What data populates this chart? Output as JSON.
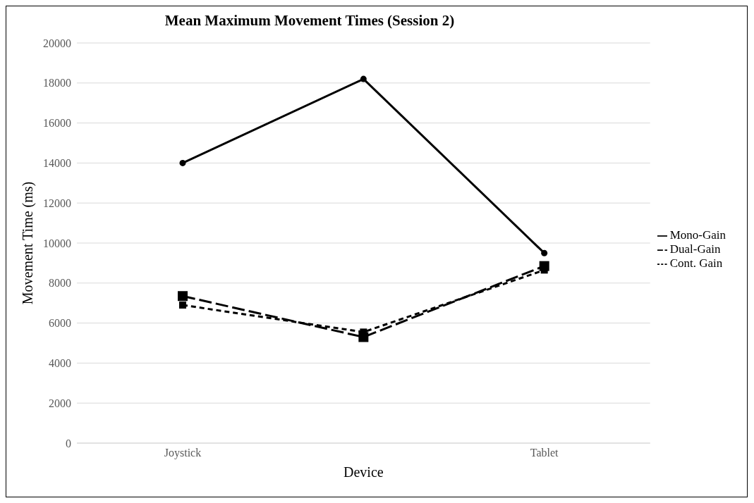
{
  "chart_data": {
    "type": "line",
    "title": "Mean Maximum Movement Times (Session 2)",
    "xlabel": "Device",
    "ylabel": "Movement Time (ms)",
    "categories": [
      "Joystick",
      null,
      "Tablet"
    ],
    "series": [
      {
        "name": "Mono-Gain",
        "color": "#000000",
        "values": [
          14000,
          18200,
          9500
        ],
        "marker": "circle",
        "line_style": "solid"
      },
      {
        "name": "Dual-Gain",
        "color": "#000000",
        "values": [
          7350,
          5300,
          8850
        ],
        "marker": "square",
        "line_style": "dashed"
      },
      {
        "name": "Cont. Gain",
        "color": "#000000",
        "values": [
          6900,
          5550,
          8650
        ],
        "marker": "square",
        "line_style": "dotted"
      }
    ],
    "ylim": [
      0,
      20000
    ],
    "yticks": [
      0,
      2000,
      4000,
      6000,
      8000,
      10000,
      12000,
      14000,
      16000,
      18000,
      20000
    ],
    "grid": "y",
    "legend": "right"
  }
}
